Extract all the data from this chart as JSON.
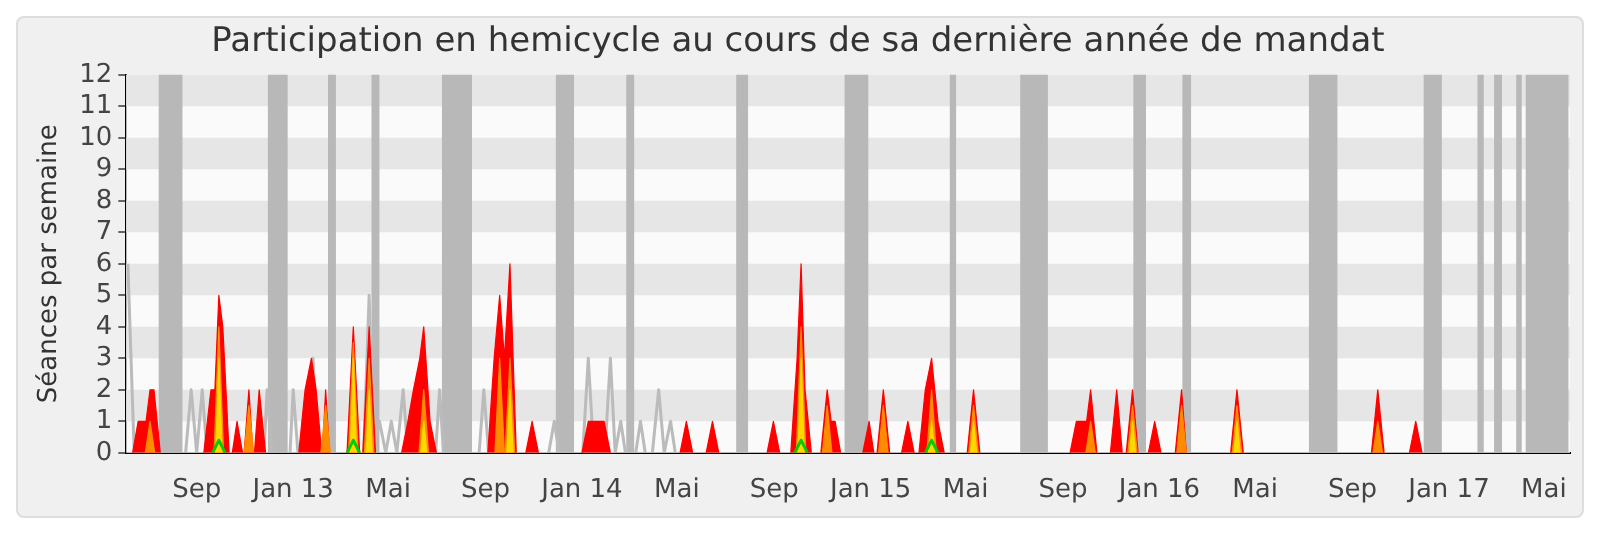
{
  "chart_data": {
    "type": "area",
    "title": "Participation en hemicycle au cours de sa dernière année de mandat",
    "ylabel": "Séances par semaine",
    "xlim": [
      "2012-06-04",
      "2017-06-03"
    ],
    "xticks": [
      {
        "value": "2012-09-01",
        "label": "Sep"
      },
      {
        "value": "2013-01-01",
        "label": "Jan 13"
      },
      {
        "value": "2013-05-01",
        "label": "Mai"
      },
      {
        "value": "2013-09-01",
        "label": "Sep"
      },
      {
        "value": "2014-01-01",
        "label": "Jan 14"
      },
      {
        "value": "2014-05-01",
        "label": "Mai"
      },
      {
        "value": "2014-09-01",
        "label": "Sep"
      },
      {
        "value": "2015-01-01",
        "label": "Jan 15"
      },
      {
        "value": "2015-05-01",
        "label": "Mai"
      },
      {
        "value": "2015-09-01",
        "label": "Sep"
      },
      {
        "value": "2016-01-01",
        "label": "Jan 16"
      },
      {
        "value": "2016-05-01",
        "label": "Mai"
      },
      {
        "value": "2016-09-01",
        "label": "Sep"
      },
      {
        "value": "2017-01-01",
        "label": "Jan 17"
      },
      {
        "value": "2017-05-01",
        "label": "Mai"
      }
    ],
    "ylim": [
      0,
      12
    ],
    "yticks": [
      0,
      1,
      2,
      3,
      4,
      5,
      6,
      7,
      8,
      9,
      10,
      11,
      12
    ],
    "legend": false,
    "bands": [
      {
        "axis": "y",
        "from": 1,
        "to": 2,
        "color": "#e6e6e6"
      },
      {
        "axis": "y",
        "from": 3,
        "to": 4,
        "color": "#e6e6e6"
      },
      {
        "axis": "y",
        "from": 5,
        "to": 6,
        "color": "#e6e6e6"
      },
      {
        "axis": "y",
        "from": 7,
        "to": 8,
        "color": "#e6e6e6"
      },
      {
        "axis": "y",
        "from": 9,
        "to": 10,
        "color": "#e6e6e6"
      },
      {
        "axis": "y",
        "from": 11,
        "to": 12,
        "color": "#e6e6e6"
      },
      {
        "axis": "x",
        "from": "2012-07-15",
        "to": "2012-08-14",
        "color": "#b8b8b8"
      },
      {
        "axis": "x",
        "from": "2012-11-30",
        "to": "2012-12-25",
        "color": "#b8b8b8"
      },
      {
        "axis": "x",
        "from": "2013-02-14",
        "to": "2013-02-24",
        "color": "#b8b8b8"
      },
      {
        "axis": "x",
        "from": "2013-04-10",
        "to": "2013-04-20",
        "color": "#b8b8b8"
      },
      {
        "axis": "x",
        "from": "2013-07-08",
        "to": "2013-08-15",
        "color": "#b8b8b8"
      },
      {
        "axis": "x",
        "from": "2013-11-29",
        "to": "2013-12-22",
        "color": "#b8b8b8"
      },
      {
        "axis": "x",
        "from": "2014-02-26",
        "to": "2014-03-08",
        "color": "#b8b8b8"
      },
      {
        "axis": "x",
        "from": "2014-07-15",
        "to": "2014-07-30",
        "color": "#b8b8b8"
      },
      {
        "axis": "x",
        "from": "2014-11-29",
        "to": "2014-12-29",
        "color": "#b8b8b8"
      },
      {
        "axis": "x",
        "from": "2015-04-11",
        "to": "2015-04-19",
        "color": "#b8b8b8"
      },
      {
        "axis": "x",
        "from": "2015-07-09",
        "to": "2015-08-13",
        "color": "#b8b8b8"
      },
      {
        "axis": "x",
        "from": "2015-11-29",
        "to": "2015-12-15",
        "color": "#b8b8b8"
      },
      {
        "axis": "x",
        "from": "2016-01-30",
        "to": "2016-02-10",
        "color": "#b8b8b8"
      },
      {
        "axis": "x",
        "from": "2016-07-08",
        "to": "2016-08-13",
        "color": "#b8b8b8"
      },
      {
        "axis": "x",
        "from": "2016-11-30",
        "to": "2016-12-23",
        "color": "#b8b8b8"
      },
      {
        "axis": "x",
        "from": "2017-02-06",
        "to": "2017-02-14",
        "color": "#b8b8b8"
      },
      {
        "axis": "x",
        "from": "2017-02-27",
        "to": "2017-03-09",
        "color": "#b8b8b8"
      },
      {
        "axis": "x",
        "from": "2017-03-27",
        "to": "2017-04-03",
        "color": "#b8b8b8"
      },
      {
        "axis": "x",
        "from": "2017-04-08",
        "to": "2017-06-01",
        "color": "#b8b8b8"
      }
    ],
    "series": [
      {
        "type": "line",
        "color": "#bbbbbb",
        "x": [
          "2012-06-06",
          "2012-06-14",
          "2012-08-18",
          "2012-08-25",
          "2012-09-01",
          "2012-09-08",
          "2012-09-14",
          "2012-11-25",
          "2012-11-29",
          "2012-12-05",
          "2012-12-28",
          "2013-01-01",
          "2013-01-07",
          "2013-01-20",
          "2013-01-26",
          "2013-02-01",
          "2013-03-31",
          "2013-04-07",
          "2013-04-12",
          "2013-04-20",
          "2013-04-28",
          "2013-05-05",
          "2013-05-12",
          "2013-05-20",
          "2013-05-26",
          "2013-06-30",
          "2013-07-05",
          "2013-07-10",
          "2013-08-24",
          "2013-08-30",
          "2013-09-05",
          "2013-11-20",
          "2013-11-27",
          "2013-12-03",
          "2014-01-02",
          "2014-01-09",
          "2014-01-16",
          "2014-01-30",
          "2014-02-06",
          "2014-02-12",
          "2014-02-19",
          "2014-02-25",
          "2014-03-10",
          "2014-03-16",
          "2014-03-22",
          "2014-03-31",
          "2014-04-08",
          "2014-04-15",
          "2014-04-23",
          "2014-04-29"
        ],
        "values": [
          6,
          0,
          0,
          2,
          0,
          2,
          0,
          0,
          2,
          0,
          0,
          2,
          0,
          0,
          3,
          0,
          0,
          5,
          0,
          1,
          0,
          1,
          0,
          2,
          0,
          0,
          2,
          0,
          0,
          2,
          0,
          0,
          1,
          0,
          0,
          3,
          0,
          0,
          3,
          0,
          1,
          0,
          0,
          1,
          0,
          0,
          2,
          0,
          1,
          0
        ]
      },
      {
        "color": "#ff0000",
        "x": [
          "2012-06-12",
          "2012-06-19",
          "2012-06-29",
          "2012-07-04",
          "2012-07-09",
          "2012-07-17",
          "2012-09-10",
          "2012-09-19",
          "2012-09-24",
          "2012-09-29",
          "2012-10-04",
          "2012-10-12",
          "2012-10-16",
          "2012-10-22",
          "2012-10-29",
          "2012-10-31",
          "2012-11-06",
          "2012-11-11",
          "2012-11-13",
          "2012-11-19",
          "2012-11-27",
          "2013-01-08",
          "2013-01-16",
          "2013-01-24",
          "2013-01-30",
          "2013-02-06",
          "2013-02-07",
          "2013-02-11",
          "2013-02-16",
          "2013-03-10",
          "2013-03-18",
          "2013-03-26",
          "2013-03-30",
          "2013-04-07",
          "2013-04-15",
          "2013-05-18",
          "2013-05-26",
          "2013-06-02",
          "2013-06-10",
          "2013-06-15",
          "2013-06-23",
          "2013-07-01",
          "2013-09-04",
          "2013-09-12",
          "2013-09-19",
          "2013-09-25",
          "2013-10-02",
          "2013-10-10",
          "2013-10-22",
          "2013-10-30",
          "2013-11-07",
          "2014-01-01",
          "2014-01-09",
          "2014-01-29",
          "2014-02-06",
          "2014-05-05",
          "2014-05-13",
          "2014-05-21",
          "2014-06-07",
          "2014-06-15",
          "2014-06-23",
          "2014-08-23",
          "2014-08-31",
          "2014-09-08",
          "2014-09-22",
          "2014-09-30",
          "2014-10-05",
          "2014-10-10",
          "2014-10-18",
          "2014-10-30",
          "2014-11-07",
          "2014-11-12",
          "2014-11-17",
          "2014-11-24",
          "2014-12-22",
          "2014-12-30",
          "2015-01-05",
          "2015-01-09",
          "2015-01-17",
          "2015-01-25",
          "2015-02-09",
          "2015-02-17",
          "2015-02-25",
          "2015-03-03",
          "2015-03-11",
          "2015-03-19",
          "2015-03-27",
          "2015-04-04",
          "2015-05-03",
          "2015-05-11",
          "2015-05-19",
          "2015-09-10",
          "2015-09-18",
          "2015-10-01",
          "2015-10-06",
          "2015-10-14",
          "2015-10-31",
          "2015-11-08",
          "2015-11-15",
          "2015-11-20",
          "2015-11-28",
          "2015-12-05",
          "2015-12-18",
          "2015-12-26",
          "2016-01-03",
          "2016-01-21",
          "2016-01-29",
          "2016-02-04",
          "2016-03-31",
          "2016-04-08",
          "2016-04-16",
          "2016-09-25",
          "2016-10-03",
          "2016-10-11",
          "2016-11-12",
          "2016-11-20",
          "2016-11-28"
        ],
        "values": [
          0,
          1,
          1,
          2,
          2,
          0,
          0,
          2,
          2,
          5,
          4,
          0,
          0,
          1,
          0,
          0,
          2,
          0,
          0,
          2,
          0,
          0,
          2,
          3,
          2,
          0,
          0,
          2,
          0,
          0,
          4,
          0,
          0,
          4,
          0,
          0,
          1,
          2,
          3,
          4,
          1,
          0,
          0,
          3,
          5,
          3,
          6,
          0,
          0,
          1,
          0,
          0,
          1,
          1,
          0,
          0,
          1,
          0,
          0,
          1,
          0,
          0,
          1,
          0,
          0,
          3,
          6,
          2,
          0,
          0,
          2,
          1,
          1,
          0,
          0,
          1,
          0,
          0,
          2,
          0,
          0,
          1,
          0,
          0,
          2,
          3,
          1,
          0,
          0,
          2,
          0,
          0,
          1,
          1,
          2,
          0,
          0,
          2,
          0,
          0,
          2,
          0,
          0,
          1,
          0,
          0,
          2,
          0,
          0,
          2,
          0,
          0,
          2,
          0,
          0,
          1,
          0
        ]
      },
      {
        "color": "#ff8c00",
        "x": [
          "2012-06-28",
          "2012-07-04",
          "2012-07-10",
          "2012-09-23",
          "2012-09-29",
          "2012-10-05",
          "2012-10-31",
          "2012-11-06",
          "2012-11-12",
          "2013-02-05",
          "2013-02-11",
          "2013-02-17",
          "2013-03-12",
          "2013-03-18",
          "2013-03-24",
          "2013-04-01",
          "2013-04-07",
          "2013-04-13",
          "2013-06-09",
          "2013-06-15",
          "2013-06-21",
          "2013-09-13",
          "2013-09-19",
          "2013-09-25",
          "2013-09-26",
          "2013-10-02",
          "2013-10-08",
          "2014-09-29",
          "2014-10-05",
          "2014-10-11",
          "2014-11-01",
          "2014-11-07",
          "2014-11-13",
          "2015-01-11",
          "2015-01-17",
          "2015-01-23",
          "2015-03-13",
          "2015-03-19",
          "2015-03-25",
          "2015-05-05",
          "2015-05-11",
          "2015-05-17",
          "2015-09-30",
          "2015-10-06",
          "2015-10-12",
          "2015-11-22",
          "2015-11-28",
          "2015-12-04",
          "2016-01-23",
          "2016-01-29",
          "2016-02-04",
          "2016-04-02",
          "2016-04-08",
          "2016-04-14",
          "2016-09-27",
          "2016-10-03",
          "2016-10-09"
        ],
        "values": [
          0,
          1,
          0,
          0,
          4,
          0,
          0,
          1.5,
          0,
          0,
          1.5,
          0,
          0,
          3.5,
          0,
          0,
          3,
          0,
          0,
          2,
          0,
          0,
          3,
          0,
          0,
          3,
          0,
          0,
          4,
          0,
          0,
          1.5,
          0,
          0,
          1.5,
          0,
          0,
          2,
          0,
          0,
          1.5,
          0,
          0,
          1,
          0,
          0,
          1.5,
          0,
          0,
          1.5,
          0,
          0,
          1.5,
          0,
          0,
          1,
          0
        ]
      },
      {
        "color": "#ffd700",
        "x": [
          "2012-09-25",
          "2012-09-29",
          "2012-10-03",
          "2013-03-14",
          "2013-03-18",
          "2013-03-22",
          "2013-04-03",
          "2013-04-07",
          "2013-04-11",
          "2013-06-11",
          "2013-06-15",
          "2013-06-19",
          "2013-09-28",
          "2013-10-02",
          "2013-10-06",
          "2014-10-01",
          "2014-10-05",
          "2014-10-09",
          "2015-03-15",
          "2015-03-19",
          "2015-03-23",
          "2015-05-07",
          "2015-05-11",
          "2015-05-15",
          "2015-11-24",
          "2015-11-28",
          "2015-12-02",
          "2016-04-04",
          "2016-04-08",
          "2016-04-12"
        ],
        "values": [
          0,
          3,
          0,
          0,
          3,
          0,
          0,
          2,
          0,
          0,
          1,
          0,
          0,
          2,
          0,
          0,
          3,
          0,
          0,
          1,
          0,
          0,
          1,
          0,
          0,
          1,
          0,
          0,
          1,
          0
        ]
      },
      {
        "type": "line",
        "color": "#00cc00",
        "x": [
          "2012-09-21",
          "2012-09-29",
          "2012-10-07",
          "2013-03-10",
          "2013-03-18",
          "2013-03-26",
          "2014-09-27",
          "2014-10-05",
          "2014-10-13",
          "2015-03-11",
          "2015-03-19",
          "2015-03-27"
        ],
        "values": [
          0,
          0.4,
          0,
          0,
          0.4,
          0,
          0,
          0.4,
          0,
          0,
          0.4,
          0
        ]
      }
    ]
  }
}
